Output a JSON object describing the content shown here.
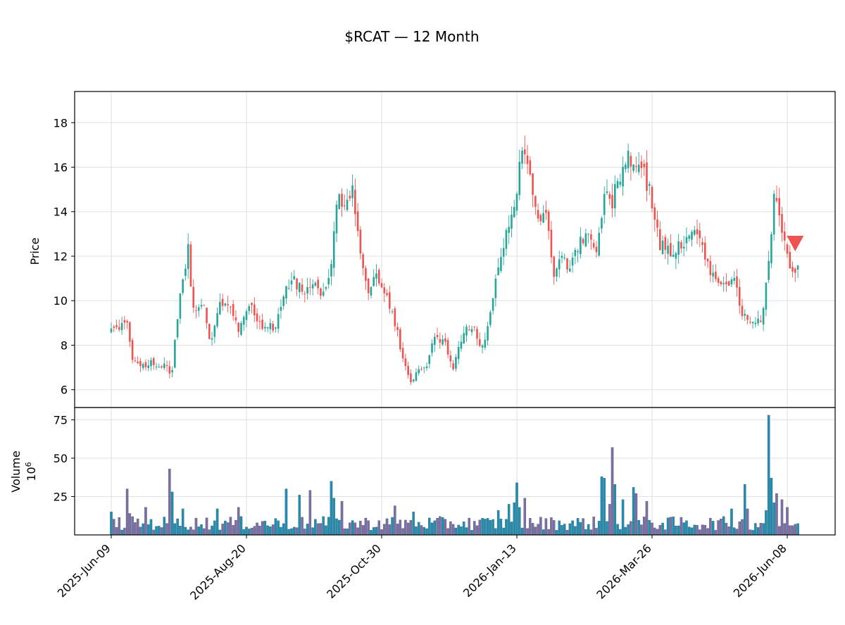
{
  "chart_data": {
    "type": "candlestick",
    "title": "$RCAT — 12 Month",
    "price_panel": {
      "ylabel": "Price",
      "ylim": [
        5.2,
        19.4
      ],
      "yticks": [
        6,
        8,
        10,
        12,
        14,
        16,
        18
      ]
    },
    "volume_panel": {
      "ylabel": "Volume",
      "yunit": "10",
      "yunit_exp": "6",
      "ylim": [
        0,
        83
      ],
      "yticks": [
        25,
        50,
        75
      ]
    },
    "x_tick_labels": [
      "2025-Jun-09",
      "2025-Aug-20",
      "2025-Oct-30",
      "2026-Jan-13",
      "2026-Mar-26",
      "2026-Jun-08"
    ],
    "x_tick_sessions": [
      0,
      51,
      102,
      153,
      204,
      255
    ],
    "session_count": 260,
    "colors": {
      "up": "#26a69a",
      "down": "#ef5350",
      "up_volume": "#1f8fb0",
      "down_volume": "#7b6fa3",
      "marker": "#ef5350"
    },
    "marker": {
      "type": "sell",
      "shape": "triangle-down",
      "session": 258,
      "price": 12.6
    },
    "anchors": [
      {
        "i": 0,
        "c": 8.7
      },
      {
        "i": 6,
        "c": 9.0
      },
      {
        "i": 8,
        "c": 7.4
      },
      {
        "i": 12,
        "c": 7.1
      },
      {
        "i": 17,
        "c": 7.2
      },
      {
        "i": 22,
        "c": 6.9
      },
      {
        "i": 23,
        "c": 7.0
      },
      {
        "i": 26,
        "c": 10.2
      },
      {
        "i": 29,
        "c": 12.3
      },
      {
        "i": 31,
        "c": 9.5
      },
      {
        "i": 35,
        "c": 9.8
      },
      {
        "i": 37,
        "c": 8.1
      },
      {
        "i": 41,
        "c": 9.8
      },
      {
        "i": 46,
        "c": 9.4
      },
      {
        "i": 48,
        "c": 8.7
      },
      {
        "i": 52,
        "c": 9.9
      },
      {
        "i": 56,
        "c": 9.0
      },
      {
        "i": 62,
        "c": 8.7
      },
      {
        "i": 66,
        "c": 10.8
      },
      {
        "i": 69,
        "c": 10.9
      },
      {
        "i": 72,
        "c": 10.4
      },
      {
        "i": 76,
        "c": 11.0
      },
      {
        "i": 79,
        "c": 10.3
      },
      {
        "i": 83,
        "c": 11.4
      },
      {
        "i": 85,
        "c": 14.5
      },
      {
        "i": 88,
        "c": 14.6
      },
      {
        "i": 91,
        "c": 15.0
      },
      {
        "i": 94,
        "c": 12.2
      },
      {
        "i": 97,
        "c": 10.4
      },
      {
        "i": 100,
        "c": 11.3
      },
      {
        "i": 104,
        "c": 10.2
      },
      {
        "i": 107,
        "c": 9.0
      },
      {
        "i": 111,
        "c": 7.0
      },
      {
        "i": 113,
        "c": 6.2
      },
      {
        "i": 116,
        "c": 7.0
      },
      {
        "i": 119,
        "c": 7.2
      },
      {
        "i": 122,
        "c": 8.5
      },
      {
        "i": 126,
        "c": 8.0
      },
      {
        "i": 129,
        "c": 7.0
      },
      {
        "i": 133,
        "c": 8.6
      },
      {
        "i": 136,
        "c": 8.9
      },
      {
        "i": 140,
        "c": 7.8
      },
      {
        "i": 143,
        "c": 9.5
      },
      {
        "i": 146,
        "c": 11.7
      },
      {
        "i": 149,
        "c": 13.0
      },
      {
        "i": 152,
        "c": 14.3
      },
      {
        "i": 155,
        "c": 16.8
      },
      {
        "i": 158,
        "c": 15.5
      },
      {
        "i": 161,
        "c": 13.5
      },
      {
        "i": 164,
        "c": 14.3
      },
      {
        "i": 167,
        "c": 11.2
      },
      {
        "i": 170,
        "c": 11.8
      },
      {
        "i": 173,
        "c": 11.5
      },
      {
        "i": 176,
        "c": 12.5
      },
      {
        "i": 180,
        "c": 12.8
      },
      {
        "i": 183,
        "c": 12.0
      },
      {
        "i": 186,
        "c": 14.8
      },
      {
        "i": 189,
        "c": 14.5
      },
      {
        "i": 192,
        "c": 15.7
      },
      {
        "i": 195,
        "c": 16.5
      },
      {
        "i": 198,
        "c": 16.0
      },
      {
        "i": 201,
        "c": 15.7
      },
      {
        "i": 204,
        "c": 14.5
      },
      {
        "i": 207,
        "c": 12.5
      },
      {
        "i": 211,
        "c": 12.2
      },
      {
        "i": 215,
        "c": 12.5
      },
      {
        "i": 218,
        "c": 13.0
      },
      {
        "i": 222,
        "c": 12.8
      },
      {
        "i": 226,
        "c": 11.3
      },
      {
        "i": 229,
        "c": 10.8
      },
      {
        "i": 232,
        "c": 10.5
      },
      {
        "i": 235,
        "c": 11.0
      },
      {
        "i": 238,
        "c": 9.3
      },
      {
        "i": 241,
        "c": 9.0
      },
      {
        "i": 243,
        "c": 8.8
      },
      {
        "i": 246,
        "c": 9.5
      },
      {
        "i": 248,
        "c": 11.8
      },
      {
        "i": 250,
        "c": 14.8
      },
      {
        "i": 253,
        "c": 13.0
      },
      {
        "i": 255,
        "c": 12.2
      },
      {
        "i": 257,
        "c": 11.2
      },
      {
        "i": 259,
        "c": 11.7
      }
    ],
    "volume_spikes": [
      {
        "i": 0,
        "v": 15
      },
      {
        "i": 6,
        "v": 30
      },
      {
        "i": 7,
        "v": 14
      },
      {
        "i": 13,
        "v": 18
      },
      {
        "i": 22,
        "v": 43
      },
      {
        "i": 23,
        "v": 28
      },
      {
        "i": 27,
        "v": 17
      },
      {
        "i": 40,
        "v": 17
      },
      {
        "i": 48,
        "v": 18
      },
      {
        "i": 66,
        "v": 30
      },
      {
        "i": 71,
        "v": 26
      },
      {
        "i": 75,
        "v": 29
      },
      {
        "i": 83,
        "v": 35
      },
      {
        "i": 84,
        "v": 24
      },
      {
        "i": 87,
        "v": 22
      },
      {
        "i": 107,
        "v": 19
      },
      {
        "i": 114,
        "v": 15
      },
      {
        "i": 146,
        "v": 16
      },
      {
        "i": 150,
        "v": 20
      },
      {
        "i": 152,
        "v": 21
      },
      {
        "i": 153,
        "v": 34
      },
      {
        "i": 154,
        "v": 18
      },
      {
        "i": 156,
        "v": 24
      },
      {
        "i": 185,
        "v": 38
      },
      {
        "i": 186,
        "v": 37
      },
      {
        "i": 188,
        "v": 20
      },
      {
        "i": 189,
        "v": 57
      },
      {
        "i": 190,
        "v": 33
      },
      {
        "i": 193,
        "v": 23
      },
      {
        "i": 197,
        "v": 31
      },
      {
        "i": 198,
        "v": 27
      },
      {
        "i": 202,
        "v": 22
      },
      {
        "i": 234,
        "v": 17
      },
      {
        "i": 239,
        "v": 33
      },
      {
        "i": 240,
        "v": 17
      },
      {
        "i": 247,
        "v": 16
      },
      {
        "i": 248,
        "v": 78
      },
      {
        "i": 249,
        "v": 37
      },
      {
        "i": 250,
        "v": 21
      },
      {
        "i": 251,
        "v": 27
      },
      {
        "i": 253,
        "v": 23
      },
      {
        "i": 255,
        "v": 18
      }
    ]
  }
}
